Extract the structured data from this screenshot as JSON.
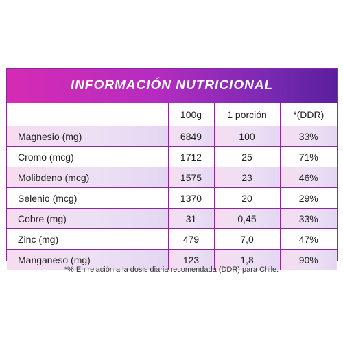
{
  "title": "INFORMACIÓN NUTRICIONAL",
  "columns": [
    "",
    "100g",
    "1 porción",
    "*(DDR)"
  ],
  "rows": [
    {
      "name": "Magnesio (mg)",
      "per100g": "6849",
      "porcion": "100",
      "ddr": "33%"
    },
    {
      "name": "Cromo (mcg)",
      "per100g": "1712",
      "porcion": "25",
      "ddr": "71%"
    },
    {
      "name": "Molibdeno (mcg)",
      "per100g": "1575",
      "porcion": "23",
      "ddr": "46%"
    },
    {
      "name": "Selenio (mcg)",
      "per100g": "1370",
      "porcion": "20",
      "ddr": "29%"
    },
    {
      "name": "Cobre (mg)",
      "per100g": "31",
      "porcion": "0,45",
      "ddr": "33%"
    },
    {
      "name": "Zinc (mg)",
      "per100g": "479",
      "porcion": "7,0",
      "ddr": "47%"
    },
    {
      "name": "Manganeso (mg)",
      "per100g": "123",
      "porcion": "1,8",
      "ddr": "90%"
    }
  ],
  "footnote": "*% En relación a la dosis diaria recomendada (DDR) para Chile.",
  "colors": {
    "header_start": "#d62bb3",
    "header_end": "#5a1f9c",
    "border": "#8a2a9a"
  }
}
